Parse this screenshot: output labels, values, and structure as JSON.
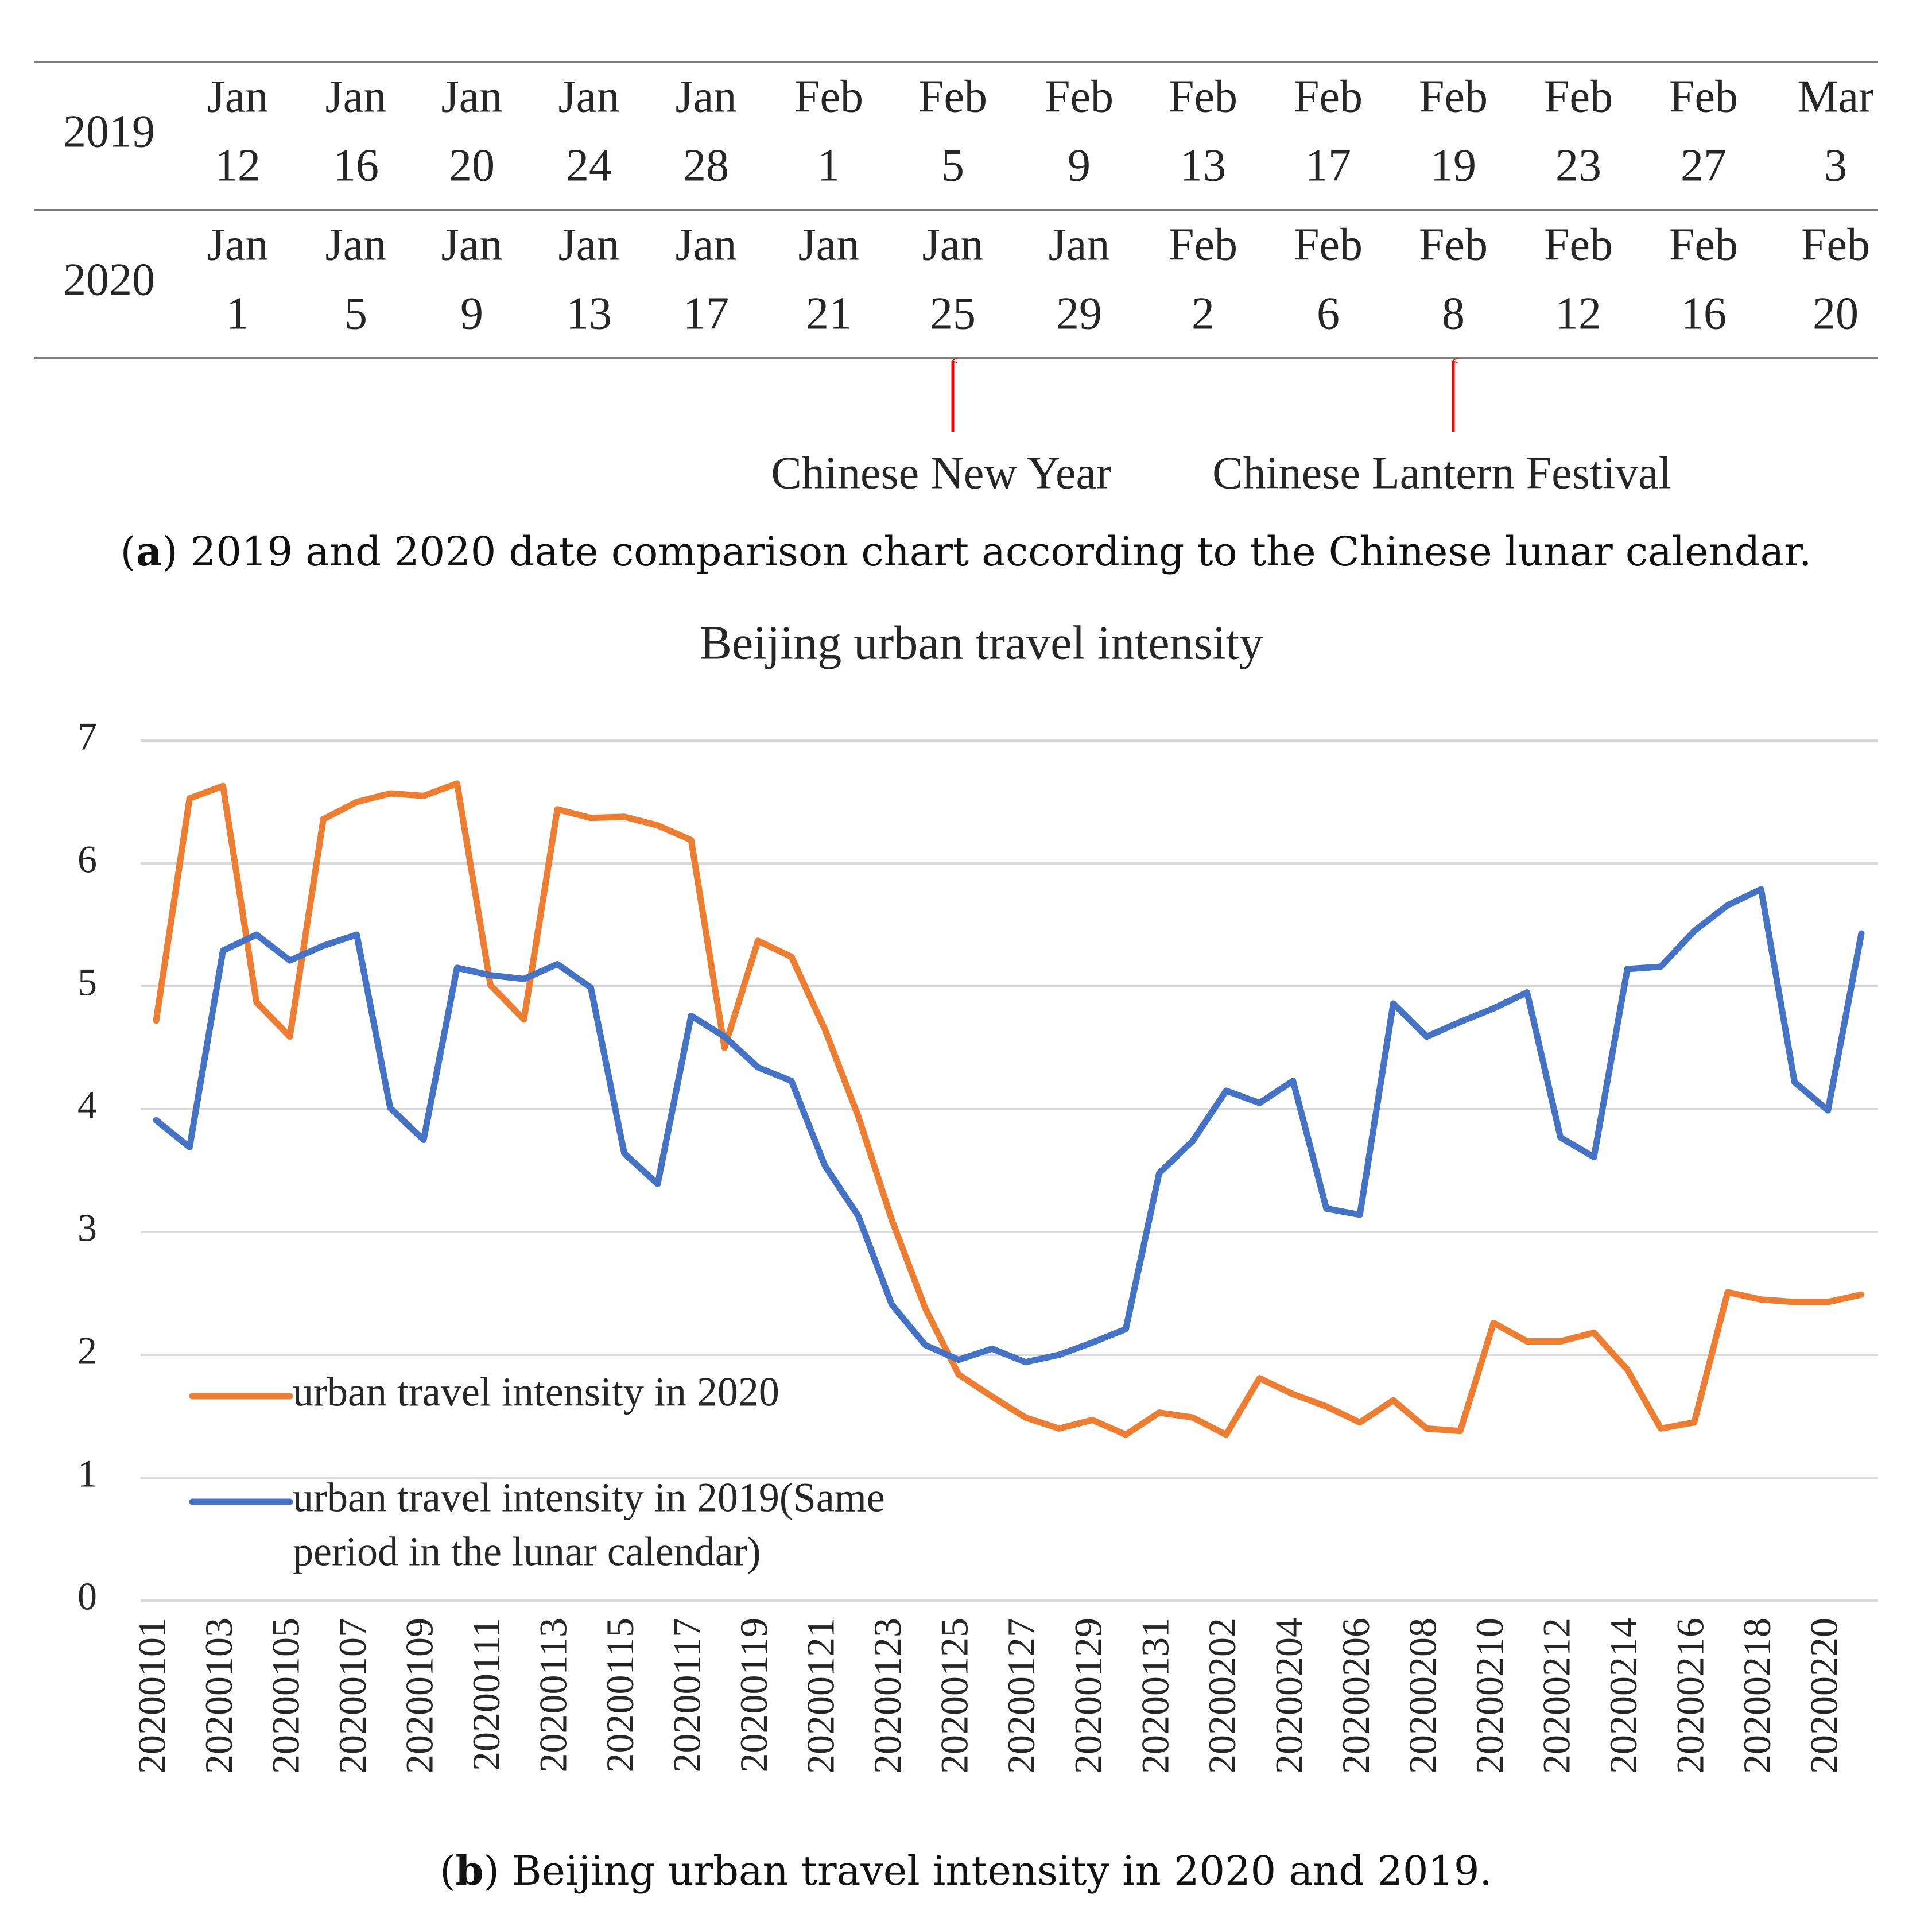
{
  "date_table": {
    "rows": [
      {
        "year": "2019",
        "dates": [
          [
            "Jan",
            "12"
          ],
          [
            "Jan",
            "16"
          ],
          [
            "Jan",
            "20"
          ],
          [
            "Jan",
            "24"
          ],
          [
            "Jan",
            "28"
          ],
          [
            "Feb",
            "1"
          ],
          [
            "Feb",
            "5"
          ],
          [
            "Feb",
            "9"
          ],
          [
            "Feb",
            "13"
          ],
          [
            "Feb",
            "17"
          ],
          [
            "Feb",
            "19"
          ],
          [
            "Feb",
            "23"
          ],
          [
            "Feb",
            "27"
          ],
          [
            "Mar",
            "3"
          ]
        ]
      },
      {
        "year": "2020",
        "dates": [
          [
            "Jan",
            "1"
          ],
          [
            "Jan",
            "5"
          ],
          [
            "Jan",
            "9"
          ],
          [
            "Jan",
            "13"
          ],
          [
            "Jan",
            "17"
          ],
          [
            "Jan",
            "21"
          ],
          [
            "Jan",
            "25"
          ],
          [
            "Jan",
            "29"
          ],
          [
            "Feb",
            "2"
          ],
          [
            "Feb",
            "6"
          ],
          [
            "Feb",
            "8"
          ],
          [
            "Feb",
            "12"
          ],
          [
            "Feb",
            "16"
          ],
          [
            "Feb",
            "20"
          ]
        ]
      }
    ],
    "markers": [
      {
        "label": "Chinese New Year",
        "column": 6,
        "color": "#ff0000"
      },
      {
        "label": "Chinese Lantern Festival",
        "column": 10,
        "color": "#ff0000"
      }
    ]
  },
  "caption_a": {
    "letter": "a",
    "text": ") 2019 and 2020 date comparison chart according to the Chinese lunar calendar."
  },
  "caption_b": {
    "letter": "b",
    "text": ") Beijing urban travel intensity in 2020 and 2019."
  },
  "chart_data": {
    "type": "line",
    "title": "Beijing urban travel intensity",
    "xlabel": "",
    "ylabel": "",
    "ylim": [
      0,
      7
    ],
    "yticks": [
      0,
      1,
      2,
      3,
      4,
      5,
      6,
      7
    ],
    "grid": true,
    "legend_position": "lower-left",
    "x": [
      "20200101",
      "20200102",
      "20200103",
      "20200104",
      "20200105",
      "20200106",
      "20200107",
      "20200108",
      "20200109",
      "20200110",
      "20200111",
      "20200112",
      "20200113",
      "20200114",
      "20200115",
      "20200116",
      "20200117",
      "20200118",
      "20200119",
      "20200120",
      "20200121",
      "20200122",
      "20200123",
      "20200124",
      "20200125",
      "20200126",
      "20200127",
      "20200128",
      "20200129",
      "20200130",
      "20200131",
      "20200201",
      "20200202",
      "20200203",
      "20200204",
      "20200205",
      "20200206",
      "20200207",
      "20200208",
      "20200209",
      "20200210",
      "20200211",
      "20200212",
      "20200213",
      "20200214",
      "20200215",
      "20200216",
      "20200217",
      "20200218",
      "20200219",
      "20200220",
      "20200221"
    ],
    "x_tick_labels": [
      "20200101",
      "20200103",
      "20200105",
      "20200107",
      "20200109",
      "20200111",
      "20200113",
      "20200115",
      "20200117",
      "20200119",
      "20200121",
      "20200123",
      "20200125",
      "20200127",
      "20200129",
      "20200131",
      "20200202",
      "20200204",
      "20200206",
      "20200208",
      "20200210",
      "20200212",
      "20200214",
      "20200216",
      "20200218",
      "20200220"
    ],
    "series": [
      {
        "name": "urban travel intensity in 2020",
        "color": "#ed7d31",
        "values": [
          4.72,
          6.53,
          6.63,
          4.87,
          4.59,
          6.36,
          6.5,
          6.57,
          6.55,
          6.65,
          5.01,
          4.73,
          6.44,
          6.37,
          6.38,
          6.31,
          6.19,
          4.5,
          5.37,
          5.24,
          4.65,
          3.94,
          3.1,
          2.38,
          1.84,
          1.66,
          1.49,
          1.4,
          1.47,
          1.35,
          1.53,
          1.49,
          1.35,
          1.81,
          1.68,
          1.58,
          1.45,
          1.63,
          1.4,
          1.38,
          2.26,
          2.11,
          2.11,
          2.18,
          1.88,
          1.4,
          1.45,
          2.51,
          2.45,
          2.43,
          2.43,
          2.49
        ]
      },
      {
        "name": "urban travel intensity in 2019(Same period in the lunar calendar)",
        "name_lines": [
          "urban travel intensity in 2019(Same",
          "period in the lunar calendar)"
        ],
        "color": "#4472c4",
        "values": [
          3.91,
          3.69,
          5.29,
          5.42,
          5.21,
          5.33,
          5.42,
          4.01,
          3.75,
          5.15,
          5.09,
          5.06,
          5.18,
          4.99,
          3.64,
          3.39,
          4.76,
          4.59,
          4.34,
          4.23,
          3.54,
          3.13,
          2.41,
          2.08,
          1.96,
          2.05,
          1.94,
          2.0,
          2.1,
          2.21,
          3.48,
          3.74,
          4.15,
          4.05,
          4.23,
          3.19,
          3.14,
          4.86,
          4.59,
          4.71,
          4.82,
          4.95,
          3.77,
          3.61,
          5.14,
          5.16,
          5.45,
          5.66,
          5.79,
          4.22,
          3.99,
          5.43
        ]
      }
    ]
  }
}
